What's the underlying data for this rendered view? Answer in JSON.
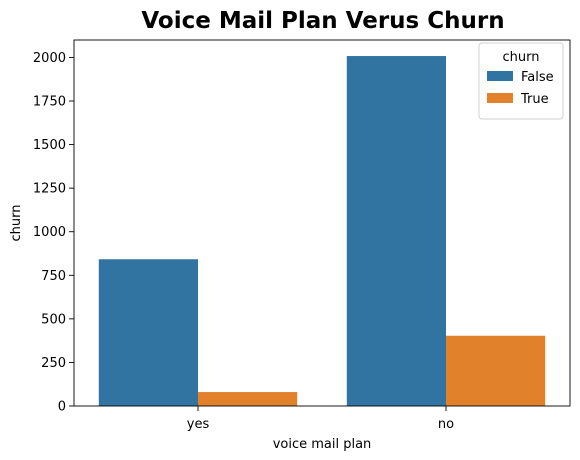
{
  "chart_data": {
    "type": "bar",
    "title": "Voice Mail Plan Verus Churn",
    "xlabel": "voice mail plan",
    "ylabel": "churn",
    "categories": [
      "yes",
      "no"
    ],
    "series": [
      {
        "name": "False",
        "values": [
          842,
          2008
        ],
        "color": "#3274a1"
      },
      {
        "name": "True",
        "values": [
          80,
          403
        ],
        "color": "#e1812c"
      }
    ],
    "ylim": [
      0,
      2100
    ],
    "yticks": [
      0,
      250,
      500,
      750,
      1000,
      1250,
      1500,
      1750,
      2000
    ],
    "grid": false,
    "legend": {
      "title": "churn",
      "placement": "top-right"
    }
  }
}
